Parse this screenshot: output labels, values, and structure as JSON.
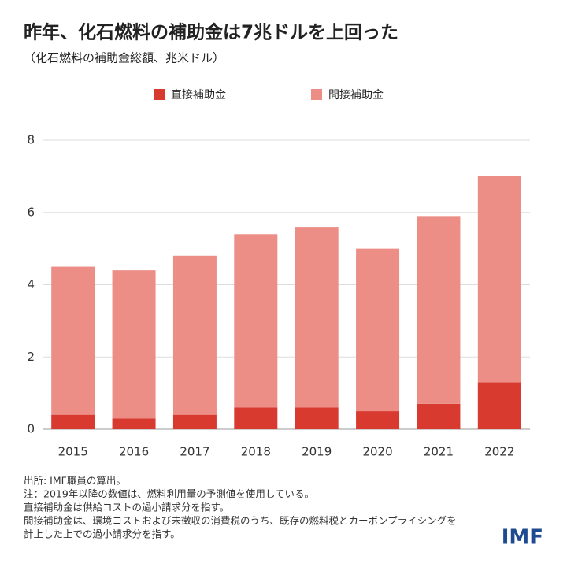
{
  "chart_data": {
    "type": "stacked-bar",
    "title": "昨年、化石燃料の補助金は7兆ドルを上回った",
    "subtitle": "（化石燃料の補助金総額、兆米ドル）",
    "categories": [
      "2015",
      "2016",
      "2017",
      "2018",
      "2019",
      "2020",
      "2021",
      "2022"
    ],
    "series": [
      {
        "name": "直接補助金",
        "color": "#d93a30",
        "values": [
          0.4,
          0.3,
          0.4,
          0.6,
          0.6,
          0.5,
          0.7,
          1.3
        ]
      },
      {
        "name": "間接補助金",
        "color": "#ec8e86",
        "values": [
          4.1,
          4.1,
          4.4,
          4.8,
          5.0,
          4.5,
          5.2,
          5.7
        ]
      }
    ],
    "ylim": [
      0,
      8
    ],
    "yticks": [
      0,
      2,
      4,
      6,
      8
    ],
    "grid": true,
    "notes": [
      "出所: IMF職員の算出。",
      "注：2019年以降の数値は、燃料利用量の予測値を使用している。",
      "直接補助金は供給コストの過小請求分を指す。",
      "間接補助金は、環境コストおよび未徴収の消費税のうち、既存の燃料税とカーボンプライシングを",
      "計上した上での過小請求分を指す。"
    ],
    "logo": "IMF"
  }
}
